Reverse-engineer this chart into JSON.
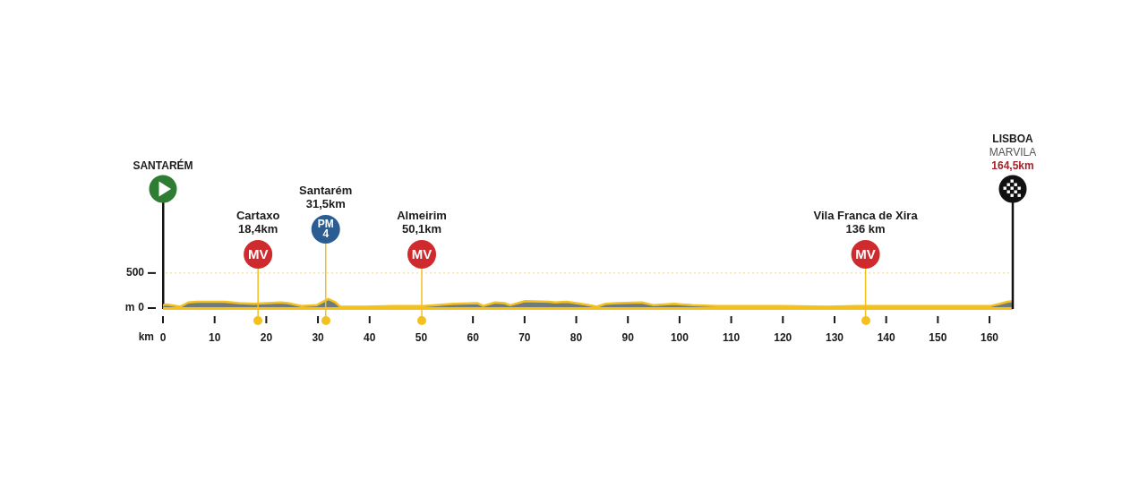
{
  "chart_data": {
    "type": "area",
    "xlabel": "km",
    "ylabel": "m",
    "xlim": [
      0,
      164.5
    ],
    "xticks": [
      0,
      10,
      20,
      30,
      40,
      50,
      60,
      70,
      80,
      90,
      100,
      110,
      120,
      130,
      140,
      150,
      160
    ],
    "ylim": [
      0,
      1700
    ],
    "yticks": [
      0,
      500
    ],
    "legend": false,
    "series": [
      {
        "color": "#6f7b7a",
        "x": [
          0,
          0.7,
          3.4,
          4.9,
          6.6,
          11.8,
          14.7,
          17.6,
          22.8,
          24.2,
          26.8,
          29.7,
          32.0,
          33.4,
          34.3,
          38.9,
          44.7,
          50.5,
          56.3,
          60.9,
          62.0,
          64.3,
          66.1,
          67.2,
          70.1,
          74.8,
          75.9,
          78.2,
          81.7,
          84.0,
          85.7,
          88.0,
          92.7,
          95.0,
          99.0,
          102.5,
          107.1,
          114.0,
          119.8,
          128.5,
          134.3,
          142.9,
          151.6,
          160.3,
          162.0,
          163.5,
          164.5
        ],
        "values": [
          40,
          50,
          20,
          80,
          90,
          90,
          70,
          60,
          80,
          70,
          30,
          40,
          130,
          80,
          20,
          20,
          30,
          30,
          60,
          70,
          30,
          80,
          70,
          40,
          100,
          90,
          80,
          90,
          50,
          20,
          60,
          70,
          80,
          40,
          60,
          40,
          30,
          30,
          30,
          20,
          30,
          30,
          30,
          30,
          60,
          90,
          100
        ]
      }
    ],
    "ref_lines": [
      {
        "axis": "x",
        "value": 18.4,
        "label": "Cartaxo\n18,4km",
        "color": "#f4c01e"
      },
      {
        "axis": "x",
        "value": 31.5,
        "label": "Santarém\n31,5km",
        "color": "#f4c01e"
      },
      {
        "axis": "x",
        "value": 50.1,
        "label": "Almeirim\n50,1km",
        "color": "#f4c01e"
      },
      {
        "axis": "x",
        "value": 136,
        "label": "Vila Franca de Xira\n136 km",
        "color": "#f4c01e"
      },
      {
        "axis": "x",
        "value": 164.5,
        "label": "LISBOA\nMARVILA\n164,5km",
        "color": "#111111"
      },
      {
        "axis": "y",
        "value": 500,
        "color": "#ecd88e",
        "line_style": "dotted"
      }
    ],
    "annotations": [
      "SANTARÉM",
      "MV",
      "PM\n4",
      "MV",
      "MV"
    ]
  }
}
